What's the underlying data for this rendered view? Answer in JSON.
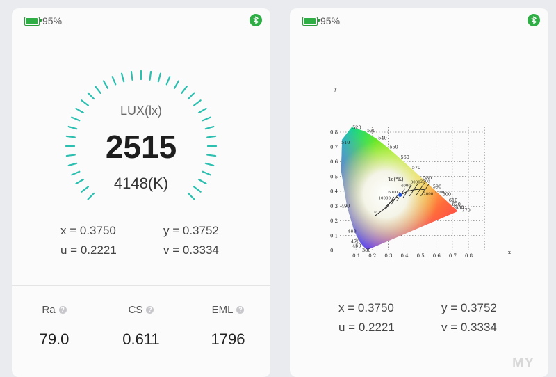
{
  "status": {
    "battery_text": "95%",
    "battery_level": 0.95
  },
  "lux": {
    "label": "LUX(lx)",
    "value": "2515",
    "cct": "4148(K)"
  },
  "coords": {
    "x": "x = 0.3750",
    "y": "y = 0.3752",
    "u": "u = 0.2221",
    "v": "v = 0.3334"
  },
  "metrics": [
    {
      "label": "Ra",
      "value": "79.0"
    },
    {
      "label": "CS",
      "value": "0.611"
    },
    {
      "label": "EML",
      "value": "1796"
    }
  ],
  "cie": {
    "y_axis": "y",
    "x_axis": "x",
    "tc_label": "Tc(°K)",
    "y_ticks": [
      "0.8",
      "0.7",
      "0.6",
      "0.5",
      "0.4",
      "0.3",
      "0.2",
      "0.1",
      "0"
    ],
    "x_ticks": [
      "0.1",
      "0.2",
      "0.3",
      "0.4",
      "0.5",
      "0.6",
      "0.7",
      "0.8"
    ],
    "wavelengths": [
      "520",
      "530",
      "540",
      "510",
      "550",
      "560",
      "570",
      "580",
      "590",
      "600",
      "610",
      "620",
      "630",
      "770",
      "490",
      "480",
      "470",
      "460",
      "380"
    ],
    "cct_marks": [
      "10000",
      "6000",
      "4000",
      "3000",
      "2500",
      "2000",
      "1500",
      "∞"
    ],
    "point": {
      "x": 0.375,
      "y": 0.3752
    }
  },
  "colors": {
    "accent": "#2bbfb0",
    "brand": "#2fae45"
  },
  "watermark": "MY"
}
